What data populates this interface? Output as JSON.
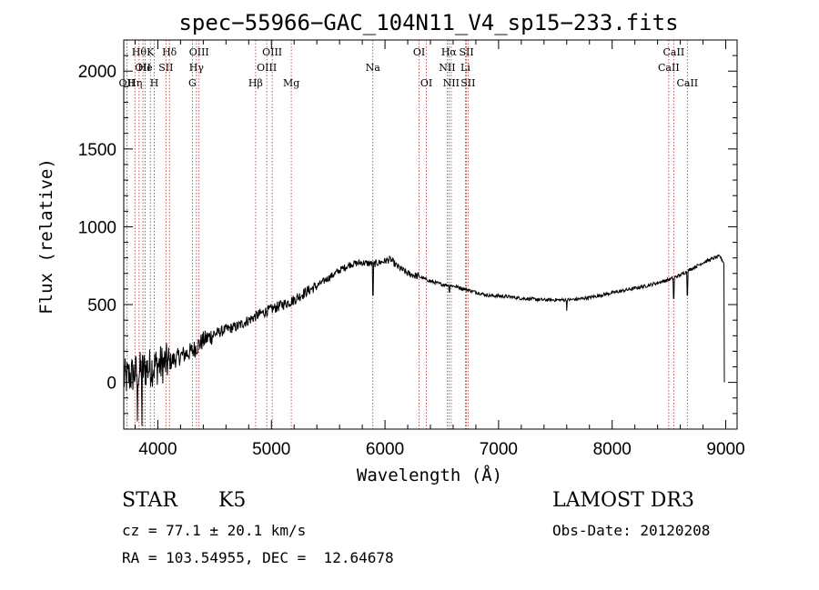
{
  "chart_data": {
    "type": "line",
    "title": "spec−55966−GAC_104N11_V4_sp15−233.fits",
    "xlabel": "Wavelength (Å)",
    "ylabel": "Flux (relative)",
    "xlim": [
      3700,
      9100
    ],
    "ylim": [
      -300,
      2200
    ],
    "x_ticks": [
      4000,
      5000,
      6000,
      7000,
      8000,
      9000
    ],
    "y_ticks": [
      0,
      500,
      1000,
      1500,
      2000
    ],
    "series": [
      {
        "name": "spectrum",
        "x": [
          3700,
          3800,
          3900,
          4000,
          4100,
          4200,
          4300,
          4400,
          4500,
          4600,
          4700,
          4800,
          4900,
          5000,
          5100,
          5200,
          5300,
          5400,
          5500,
          5600,
          5700,
          5800,
          5900,
          6000,
          6050,
          6100,
          6200,
          6300,
          6400,
          6500,
          6600,
          6700,
          6800,
          6900,
          7000,
          7100,
          7200,
          7300,
          7400,
          7500,
          7600,
          7700,
          7800,
          7900,
          8000,
          8100,
          8200,
          8300,
          8400,
          8500,
          8600,
          8700,
          8800,
          8900,
          8950,
          8990
        ],
        "y": [
          20,
          60,
          90,
          110,
          130,
          170,
          200,
          270,
          310,
          340,
          360,
          400,
          440,
          470,
          500,
          530,
          580,
          620,
          670,
          720,
          760,
          770,
          760,
          780,
          790,
          750,
          700,
          680,
          650,
          630,
          620,
          600,
          580,
          560,
          555,
          550,
          540,
          535,
          530,
          530,
          530,
          535,
          545,
          560,
          575,
          590,
          605,
          620,
          640,
          660,
          690,
          730,
          770,
          800,
          810,
          760
        ]
      }
    ],
    "dips": [
      {
        "x": 3820,
        "y": -250
      },
      {
        "x": 3860,
        "y": -280
      },
      {
        "x": 5895,
        "y": 560
      },
      {
        "x": 6565,
        "y": 580
      },
      {
        "x": 7600,
        "y": 460
      },
      {
        "x": 8542,
        "y": 540
      },
      {
        "x": 8662,
        "y": 560
      },
      {
        "x": 8990,
        "y": 0
      }
    ],
    "lines": [
      {
        "x": 3727,
        "label": "OII",
        "row": 3
      },
      {
        "x": 3798,
        "label": "Hη",
        "row": 3
      },
      {
        "x": 3835,
        "label": "Hθ",
        "row": 1
      },
      {
        "x": 3869,
        "label": "OII",
        "row": 2
      },
      {
        "x": 3889,
        "label": "He",
        "row": 2
      },
      {
        "x": 3934,
        "label": "K",
        "row": 1
      },
      {
        "x": 3969,
        "label": "H",
        "row": 3
      },
      {
        "x": 4071,
        "label": "SII",
        "row": 2
      },
      {
        "x": 4102,
        "label": "Hδ",
        "row": 1
      },
      {
        "x": 4304,
        "label": "G",
        "row": 3
      },
      {
        "x": 4340,
        "label": "Hγ",
        "row": 2
      },
      {
        "x": 4363,
        "label": "OIII",
        "row": 1
      },
      {
        "x": 4861,
        "label": "Hβ",
        "row": 3
      },
      {
        "x": 4959,
        "label": "OIII",
        "row": 2
      },
      {
        "x": 5007,
        "label": "OIII",
        "row": 1
      },
      {
        "x": 5175,
        "label": "Mg",
        "row": 3
      },
      {
        "x": 5893,
        "label": "Na",
        "row": 2
      },
      {
        "x": 6300,
        "label": "OI",
        "row": 1
      },
      {
        "x": 6364,
        "label": "OI",
        "row": 3
      },
      {
        "x": 6548,
        "label": "NII",
        "row": 2
      },
      {
        "x": 6563,
        "label": "Hα",
        "row": 1
      },
      {
        "x": 6583,
        "label": "NII",
        "row": 3
      },
      {
        "x": 6708,
        "label": "Li",
        "row": 2
      },
      {
        "x": 6717,
        "label": "SII",
        "row": 1
      },
      {
        "x": 6731,
        "label": "SII",
        "row": 3
      },
      {
        "x": 8498,
        "label": "CaII",
        "row": 2
      },
      {
        "x": 8542,
        "label": "CaII",
        "row": 1
      },
      {
        "x": 8662,
        "label": "CaII",
        "row": 3
      }
    ]
  },
  "info": {
    "object_class": "STAR",
    "subclass": "K5",
    "survey": "LAMOST DR3",
    "redshift_line": "cz = 77.1 ± 20.1 km/s",
    "obs_date_line": "Obs-Date: 20120208",
    "coords_line": "RA = 103.54955, DEC =  12.64678"
  },
  "colors": {
    "spectrum": "#000000",
    "line_marker": "#b03030",
    "axis": "#000000",
    "background": "#ffffff"
  }
}
